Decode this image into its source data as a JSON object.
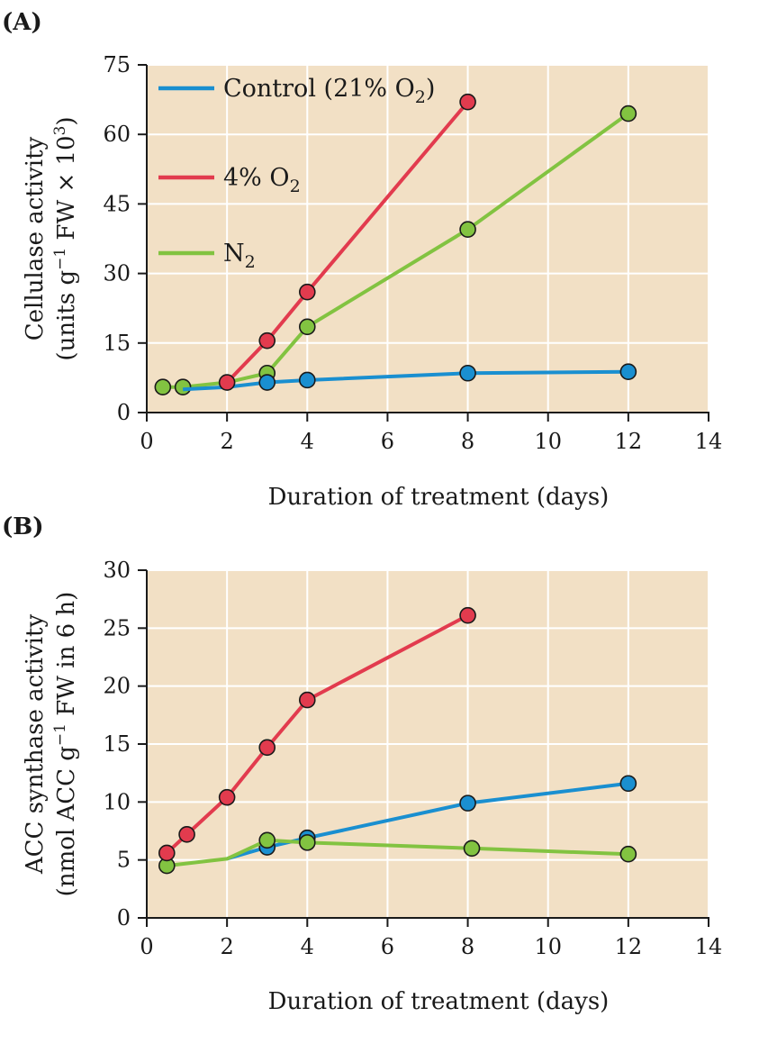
{
  "colors": {
    "plot_bg": "#f2e0c5",
    "grid": "#ffffff",
    "axis": "#1a1a1a",
    "control": "#1a8fd0",
    "o2_4": "#e23b4e",
    "n2": "#82c341"
  },
  "chart_data": [
    {
      "panel": "(A)",
      "type": "line",
      "xlabel": "Duration of treatment (days)",
      "ylabel_line1": "Cellulase activity",
      "ylabel_line2": {
        "pre": "(units g",
        "sup1": "−1",
        "mid": " FW × 10",
        "sup2": "3",
        "post": ")"
      },
      "xlim": [
        0,
        14
      ],
      "ylim": [
        0,
        75
      ],
      "xticks": [
        "0",
        "2",
        "4",
        "6",
        "8",
        "10",
        "12",
        "14"
      ],
      "yticks": [
        "0",
        "15",
        "30",
        "45",
        "60",
        "75"
      ],
      "legend_position": "top-left",
      "legend": [
        {
          "key": "control",
          "pre": "Control (21% O",
          "sub": "2",
          "post": ")"
        },
        {
          "key": "o2_4",
          "pre": "4% O",
          "sub": "2",
          "post": ""
        },
        {
          "key": "n2",
          "pre": "N",
          "sub": "2",
          "post": ""
        }
      ],
      "series": [
        {
          "key": "n2",
          "name": "N2",
          "line": [
            [
              0.4,
              5.5
            ],
            [
              0.9,
              5.5
            ],
            [
              2.0,
              6.5
            ],
            [
              3.0,
              8.5
            ],
            [
              4.0,
              18.5
            ],
            [
              8.0,
              39.5
            ],
            [
              12.0,
              64.5
            ]
          ],
          "markers": [
            [
              0.4,
              5.5
            ],
            [
              0.9,
              5.5
            ],
            [
              3.0,
              8.5
            ],
            [
              4.0,
              18.5
            ],
            [
              8.0,
              39.5
            ],
            [
              12.0,
              64.5
            ]
          ]
        },
        {
          "key": "control",
          "name": "Control (21% O2)",
          "line": [
            [
              0.9,
              5.0
            ],
            [
              2.0,
              5.5
            ],
            [
              3.0,
              6.5
            ],
            [
              4.0,
              7.0
            ],
            [
              8.0,
              8.5
            ],
            [
              12.0,
              8.8
            ]
          ],
          "markers": [
            [
              3.0,
              6.5
            ],
            [
              4.0,
              7.0
            ],
            [
              8.0,
              8.5
            ],
            [
              12.0,
              8.8
            ]
          ]
        },
        {
          "key": "o2_4",
          "name": "4% O2",
          "line": [
            [
              2.0,
              6.5
            ],
            [
              3.0,
              15.5
            ],
            [
              4.0,
              26.0
            ],
            [
              8.0,
              67.0
            ]
          ],
          "markers": [
            [
              2.0,
              6.5
            ],
            [
              3.0,
              15.5
            ],
            [
              4.0,
              26.0
            ],
            [
              8.0,
              67.0
            ]
          ]
        }
      ]
    },
    {
      "panel": "(B)",
      "type": "line",
      "xlabel": "Duration of treatment (days)",
      "ylabel_line1": "ACC synthase activity",
      "ylabel_line2": {
        "pre": "(nmol ACC g",
        "sup1": "−1",
        "mid": " FW in 6 h)",
        "sup2": "",
        "post": ""
      },
      "xlim": [
        0,
        14
      ],
      "ylim": [
        0,
        30
      ],
      "xticks": [
        "0",
        "2",
        "4",
        "6",
        "8",
        "10",
        "12",
        "14"
      ],
      "yticks": [
        "0",
        "5",
        "10",
        "15",
        "20",
        "25",
        "30"
      ],
      "series": [
        {
          "key": "control",
          "name": "Control (21% O2)",
          "line": [
            [
              2.0,
              5.1
            ],
            [
              3.0,
              6.1
            ],
            [
              4.0,
              6.9
            ],
            [
              8.0,
              9.9
            ],
            [
              12.0,
              11.6
            ]
          ],
          "markers": [
            [
              3.0,
              6.1
            ],
            [
              4.0,
              6.9
            ],
            [
              8.0,
              9.9
            ],
            [
              12.0,
              11.6
            ]
          ]
        },
        {
          "key": "n2",
          "name": "N2",
          "line": [
            [
              0.5,
              4.5
            ],
            [
              2.0,
              5.1
            ],
            [
              3.0,
              6.7
            ],
            [
              4.0,
              6.5
            ],
            [
              8.1,
              6.0
            ],
            [
              12.0,
              5.5
            ]
          ],
          "markers": [
            [
              0.5,
              4.5
            ],
            [
              3.0,
              6.7
            ],
            [
              4.0,
              6.5
            ],
            [
              8.1,
              6.0
            ],
            [
              12.0,
              5.5
            ]
          ]
        },
        {
          "key": "o2_4",
          "name": "4% O2",
          "line": [
            [
              0.5,
              5.6
            ],
            [
              1.0,
              7.2
            ],
            [
              2.0,
              10.4
            ],
            [
              3.0,
              14.7
            ],
            [
              4.0,
              18.8
            ],
            [
              8.0,
              26.1
            ]
          ],
          "markers": [
            [
              0.5,
              5.6
            ],
            [
              1.0,
              7.2
            ],
            [
              2.0,
              10.4
            ],
            [
              3.0,
              14.7
            ],
            [
              4.0,
              18.8
            ],
            [
              8.0,
              26.1
            ]
          ]
        }
      ]
    }
  ]
}
